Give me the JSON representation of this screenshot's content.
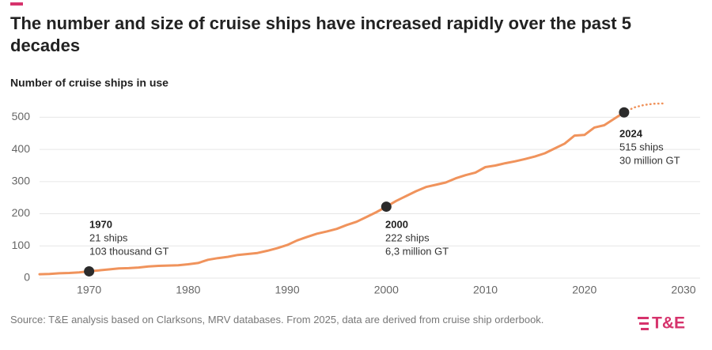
{
  "chart_data": {
    "type": "line",
    "title": "The number and size of cruise ships have increased rapidly over the past 5 decades",
    "y_label": "Number of cruise ships in use",
    "source": "Source: T&E analysis based on Clarksons, MRV databases. From 2025, data are derived from cruise ship orderbook.",
    "logo": "T&E",
    "xlim": [
      1965,
      2030
    ],
    "ylim": [
      0,
      550
    ],
    "xticks": [
      1970,
      1980,
      1990,
      2000,
      2010,
      2020,
      2030
    ],
    "yticks": [
      0,
      100,
      200,
      300,
      400,
      500
    ],
    "grid": true,
    "series": [
      {
        "color": "#f0935c",
        "dashed": false,
        "x": [
          1965,
          1966,
          1967,
          1968,
          1969,
          1970,
          1971,
          1972,
          1973,
          1974,
          1975,
          1976,
          1977,
          1978,
          1979,
          1980,
          1981,
          1982,
          1983,
          1984,
          1985,
          1986,
          1987,
          1988,
          1989,
          1990,
          1991,
          1992,
          1993,
          1994,
          1995,
          1996,
          1997,
          1998,
          1999,
          2000,
          2001,
          2002,
          2003,
          2004,
          2005,
          2006,
          2007,
          2008,
          2009,
          2010,
          2011,
          2012,
          2013,
          2014,
          2015,
          2016,
          2017,
          2018,
          2019,
          2020,
          2021,
          2022,
          2023,
          2024
        ],
        "values": [
          12,
          13,
          15,
          16,
          18,
          21,
          24,
          27,
          30,
          31,
          33,
          36,
          38,
          39,
          40,
          43,
          47,
          57,
          62,
          66,
          72,
          75,
          78,
          85,
          93,
          103,
          117,
          128,
          138,
          145,
          153,
          165,
          175,
          190,
          205,
          222,
          240,
          255,
          270,
          283,
          290,
          297,
          310,
          320,
          328,
          345,
          350,
          357,
          363,
          370,
          378,
          388,
          403,
          418,
          443,
          445,
          468,
          475,
          495,
          515
        ]
      },
      {
        "color": "#f0935c",
        "dashed": true,
        "x": [
          2024,
          2025,
          2026,
          2027,
          2028
        ],
        "values": [
          515,
          530,
          538,
          542,
          543
        ]
      }
    ],
    "annotations": [
      {
        "x": 1970,
        "y": 21,
        "lines": [
          "21 ships",
          "103 thousand GT"
        ]
      },
      {
        "x": 2000,
        "y": 222,
        "lines": [
          "222 ships",
          "6,3 million GT"
        ]
      },
      {
        "x": 2024,
        "y": 515,
        "lines": [
          "515 ships",
          "30 million GT"
        ]
      }
    ]
  }
}
